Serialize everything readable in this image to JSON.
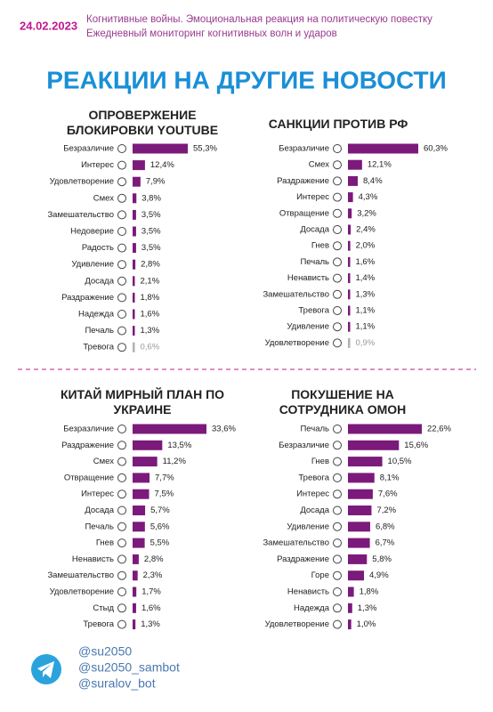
{
  "header": {
    "date": "24.02.2023",
    "line1": "Когнитивные войны. Эмоциональная реакция на политическую повестку",
    "line2": "Ежедневный мониторинг когнитивных волн и ударов",
    "title": "РЕАКЦИИ НА ДРУГИЕ НОВОСТИ"
  },
  "chart_data": [
    {
      "type": "bar",
      "title": "ОПРОВЕРЖЕНИЕ БЛОКИРОВКИ YOUTUBE",
      "categories": [
        "Безразличие",
        "Интерес",
        "Удовлетворение",
        "Смех",
        "Замешательство",
        "Недоверие",
        "Радость",
        "Удивление",
        "Досада",
        "Раздражение",
        "Надежда",
        "Печаль",
        "Тревога"
      ],
      "values": [
        55.3,
        12.4,
        7.9,
        3.8,
        3.5,
        3.5,
        3.5,
        2.8,
        2.1,
        1.8,
        1.6,
        1.3,
        0.6
      ],
      "value_labels": [
        "55,3%",
        "12,4%",
        "7,9%",
        "3,8%",
        "3,5%",
        "3,5%",
        "3,5%",
        "2,8%",
        "2,1%",
        "1,8%",
        "1,6%",
        "1,3%",
        "0,6%"
      ],
      "colors": [
        "#7b1a7b",
        "#7b1a7b",
        "#7b1a7b",
        "#7b1a7b",
        "#7b1a7b",
        "#7b1a7b",
        "#7b1a7b",
        "#7b1a7b",
        "#7b1a7b",
        "#7b1a7b",
        "#7b1a7b",
        "#7b1a7b",
        "#b0b0b0"
      ]
    },
    {
      "type": "bar",
      "title": "САНКЦИИ ПРОТИВ РФ",
      "categories": [
        "Безразличие",
        "Смех",
        "Раздражение",
        "Интерес",
        "Отвращение",
        "Досада",
        "Гнев",
        "Печаль",
        "Ненависть",
        "Замешательство",
        "Тревога",
        "Удивление",
        "Удовлетворение"
      ],
      "values": [
        60.3,
        12.1,
        8.4,
        4.3,
        3.2,
        2.4,
        2.0,
        1.6,
        1.4,
        1.3,
        1.1,
        1.1,
        0.9
      ],
      "value_labels": [
        "60,3%",
        "12,1%",
        "8,4%",
        "4,3%",
        "3,2%",
        "2,4%",
        "2,0%",
        "1,6%",
        "1,4%",
        "1,3%",
        "1,1%",
        "1,1%",
        "0,9%"
      ],
      "colors": [
        "#7b1a7b",
        "#7b1a7b",
        "#7b1a7b",
        "#7b1a7b",
        "#7b1a7b",
        "#7b1a7b",
        "#7b1a7b",
        "#7b1a7b",
        "#7b1a7b",
        "#7b1a7b",
        "#7b1a7b",
        "#7b1a7b",
        "#b0b0b0"
      ]
    },
    {
      "type": "bar",
      "title": "КИТАЙ МИРНЫЙ ПЛАН ПО УКРАИНЕ",
      "categories": [
        "Безразличие",
        "Раздражение",
        "Смех",
        "Отвращение",
        "Интерес",
        "Досада",
        "Печаль",
        "Гнев",
        "Ненависть",
        "Замешательство",
        "Удовлетворение",
        "Стыд",
        "Тревога"
      ],
      "values": [
        33.6,
        13.5,
        11.2,
        7.7,
        7.5,
        5.7,
        5.6,
        5.5,
        2.8,
        2.3,
        1.7,
        1.6,
        1.3
      ],
      "value_labels": [
        "33,6%",
        "13,5%",
        "11,2%",
        "7,7%",
        "7,5%",
        "5,7%",
        "5,6%",
        "5,5%",
        "2,8%",
        "2,3%",
        "1,7%",
        "1,6%",
        "1,3%"
      ],
      "colors": [
        "#7b1a7b",
        "#7b1a7b",
        "#7b1a7b",
        "#7b1a7b",
        "#7b1a7b",
        "#7b1a7b",
        "#7b1a7b",
        "#7b1a7b",
        "#7b1a7b",
        "#7b1a7b",
        "#7b1a7b",
        "#7b1a7b",
        "#7b1a7b"
      ]
    },
    {
      "type": "bar",
      "title": "ПОКУШЕНИЕ НА СОТРУДНИКА ОМОН",
      "categories": [
        "Печаль",
        "Безразличие",
        "Гнев",
        "Тревога",
        "Интерес",
        "Досада",
        "Удивление",
        "Замешательство",
        "Раздражение",
        "Горе",
        "Ненависть",
        "Надежда",
        "Удовлетворение"
      ],
      "values": [
        22.6,
        15.6,
        10.5,
        8.1,
        7.6,
        7.2,
        6.8,
        6.7,
        5.8,
        4.9,
        1.8,
        1.3,
        1.0
      ],
      "value_labels": [
        "22,6%",
        "15,6%",
        "10,5%",
        "8,1%",
        "7,6%",
        "7,2%",
        "6,8%",
        "6,7%",
        "5,8%",
        "4,9%",
        "1,8%",
        "1,3%",
        "1,0%"
      ],
      "colors": [
        "#7b1a7b",
        "#7b1a7b",
        "#7b1a7b",
        "#7b1a7b",
        "#7b1a7b",
        "#7b1a7b",
        "#7b1a7b",
        "#7b1a7b",
        "#7b1a7b",
        "#7b1a7b",
        "#7b1a7b",
        "#7b1a7b",
        "#7b1a7b"
      ]
    }
  ],
  "footer": {
    "links": [
      "@su2050",
      "@su2050_sambot",
      "@suralov_bot"
    ]
  }
}
